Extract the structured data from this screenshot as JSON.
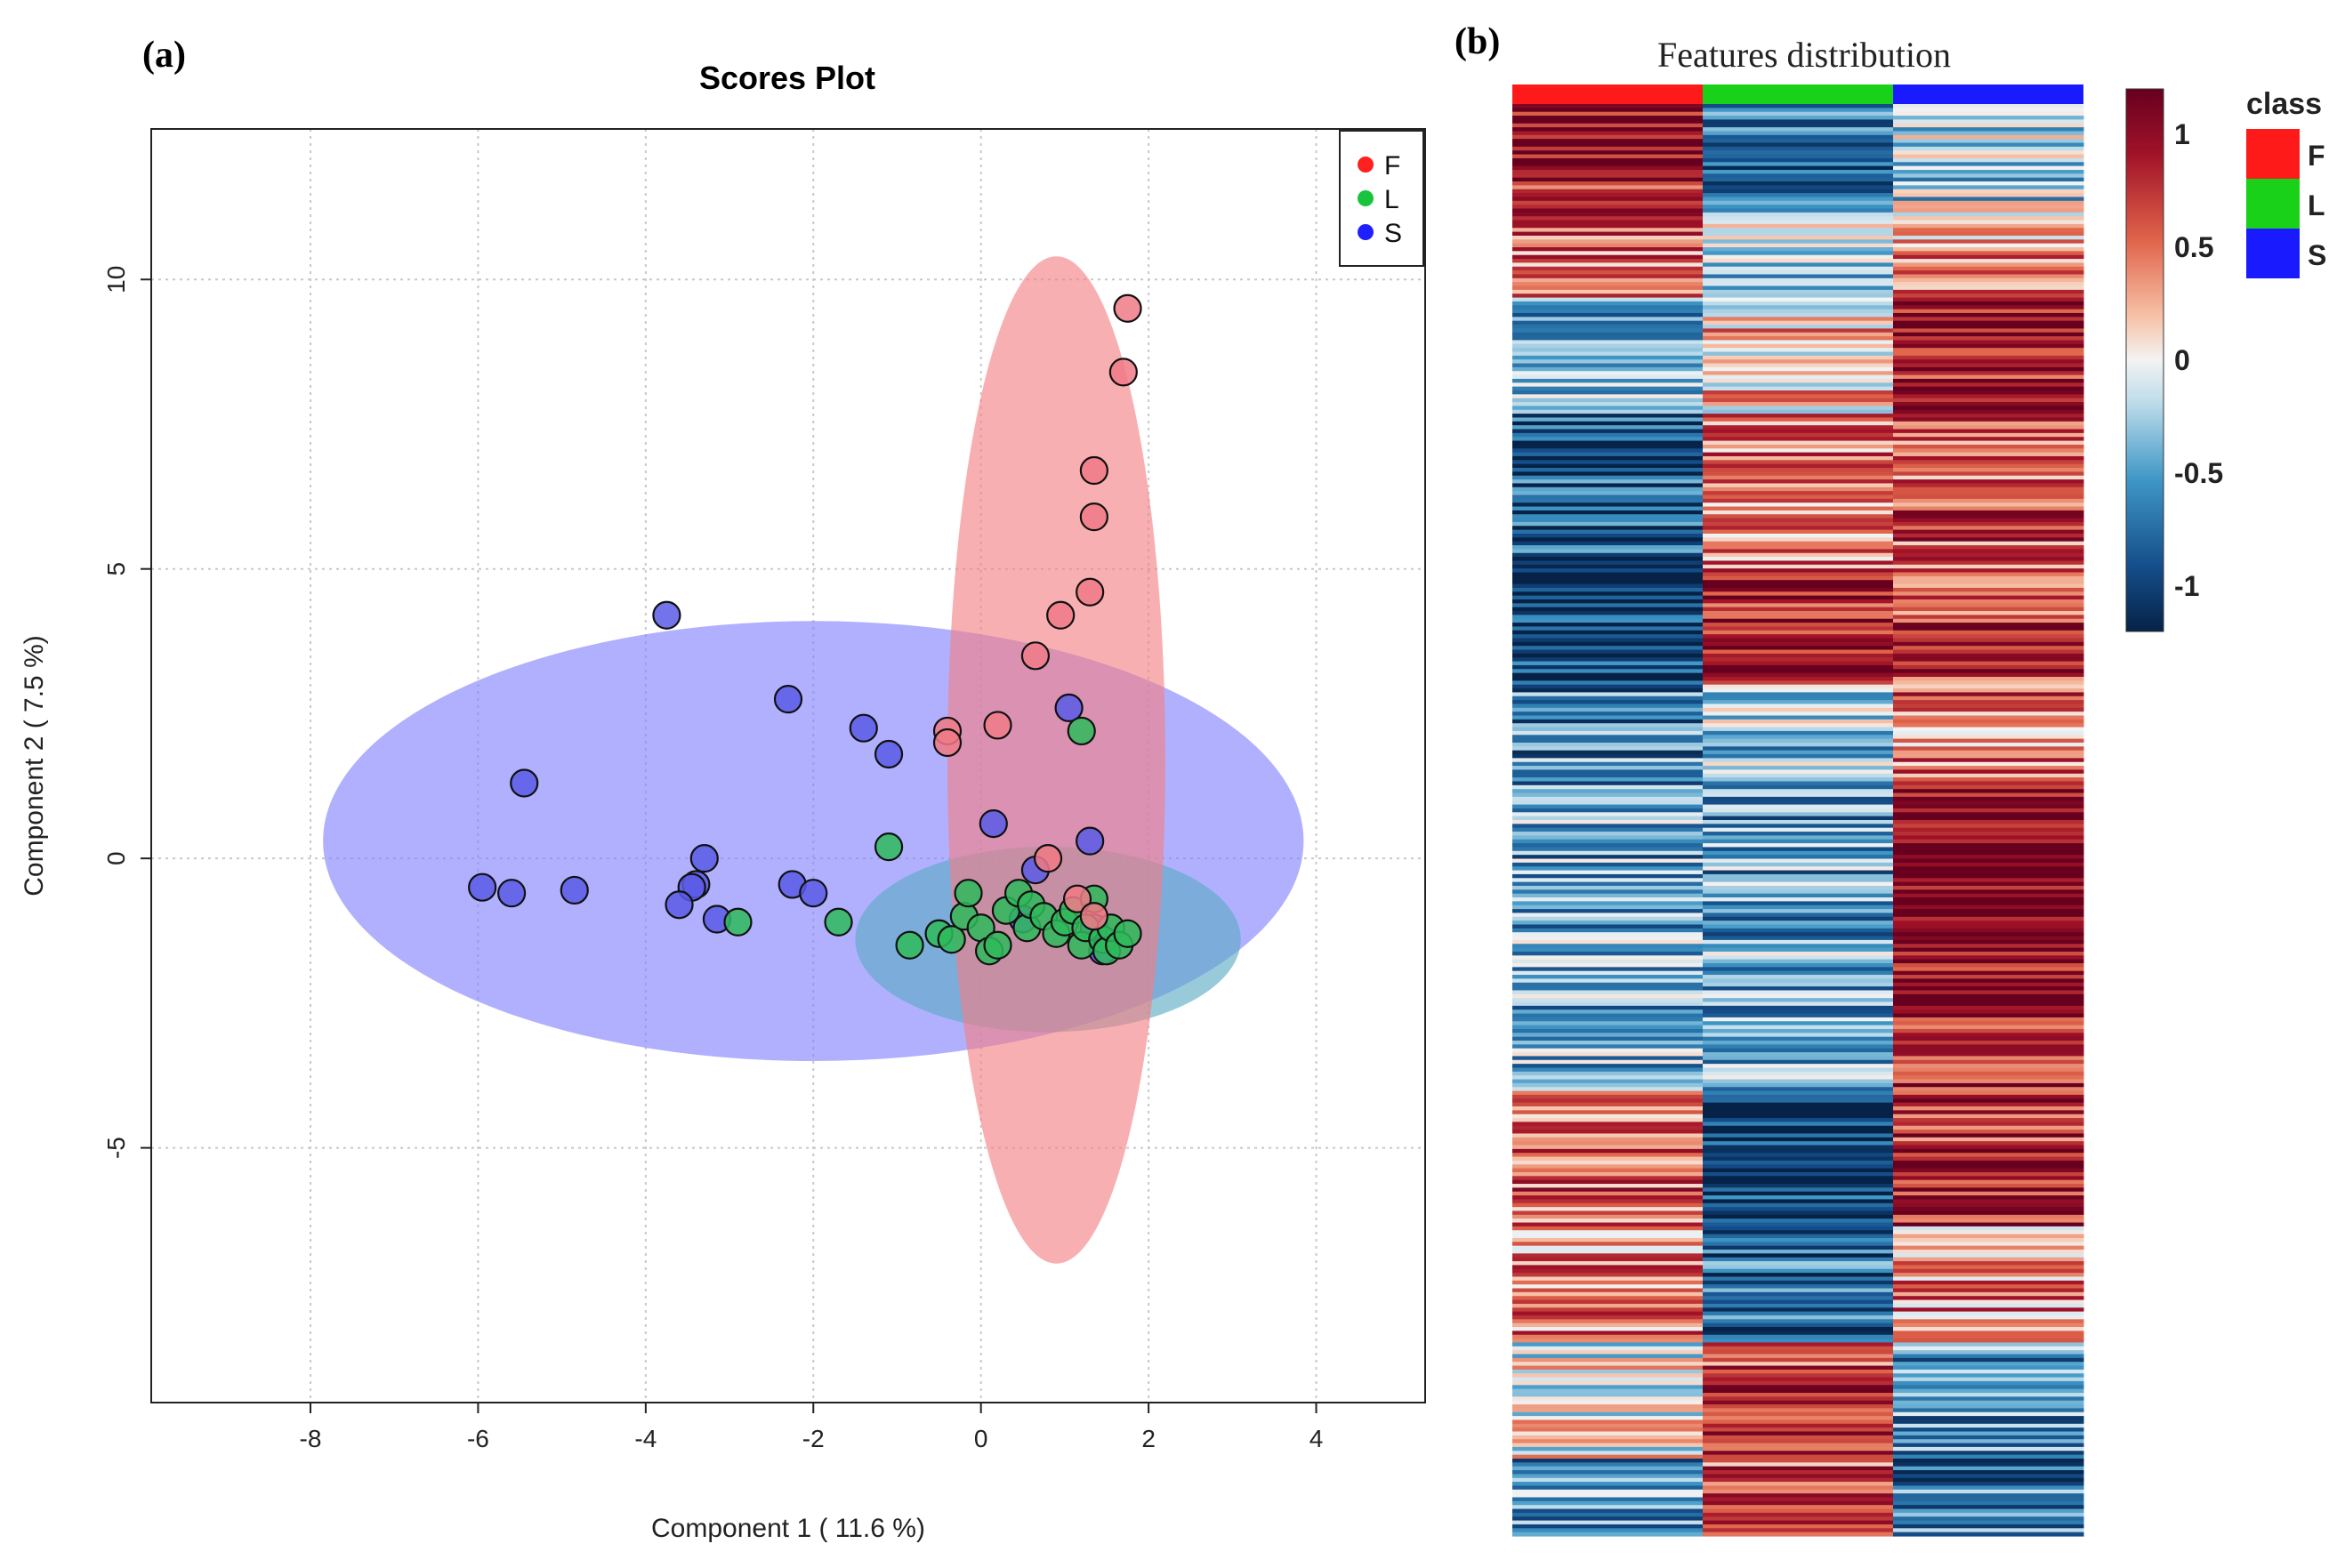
{
  "chart_data": [
    {
      "panel": "(a)",
      "type": "scatter",
      "title": "Scores Plot",
      "xlabel": "Component 1 ( 11.6 %)",
      "ylabel": "Component 2 ( 7.5 %)",
      "xlim": [
        -9.9,
        5.3
      ],
      "ylim": [
        -9.4,
        12.6
      ],
      "xticks": [
        -8,
        -6,
        -4,
        -2,
        0,
        2,
        4
      ],
      "yticks": [
        -5,
        0,
        5,
        10
      ],
      "grid": true,
      "legend_position": "top-right",
      "series": [
        {
          "name": "F",
          "color": "#ff2020",
          "fill": "#f07a86",
          "ellipse": {
            "cx": 0.9,
            "cy": 1.7,
            "rx": 1.3,
            "ry": 8.7,
            "fill": "#f47e83"
          },
          "points": [
            [
              1.75,
              9.5
            ],
            [
              1.7,
              8.4
            ],
            [
              1.35,
              6.7
            ],
            [
              1.35,
              5.9
            ],
            [
              1.3,
              4.6
            ],
            [
              0.95,
              4.2
            ],
            [
              0.65,
              3.5
            ],
            [
              0.2,
              2.3
            ],
            [
              -0.4,
              2.2
            ],
            [
              -0.4,
              2.0
            ],
            [
              0.8,
              0.0
            ],
            [
              1.15,
              -0.7
            ],
            [
              1.35,
              -1.0
            ]
          ]
        },
        {
          "name": "L",
          "color": "#18c43c",
          "fill": "#2eba5a",
          "ellipse": {
            "cx": 0.8,
            "cy": -1.4,
            "rx": 2.3,
            "ry": 1.6,
            "fill": "#5aa9c4"
          },
          "points": [
            [
              1.2,
              2.2
            ],
            [
              -1.1,
              0.2
            ],
            [
              -2.9,
              -1.1
            ],
            [
              -1.7,
              -1.1
            ],
            [
              -0.85,
              -1.5
            ],
            [
              -0.5,
              -1.3
            ],
            [
              -0.35,
              -1.4
            ],
            [
              -0.2,
              -1.0
            ],
            [
              -0.15,
              -0.6
            ],
            [
              0.0,
              -1.2
            ],
            [
              0.1,
              -1.6
            ],
            [
              0.2,
              -1.5
            ],
            [
              0.3,
              -0.9
            ],
            [
              0.45,
              -0.6
            ],
            [
              0.55,
              -1.2
            ],
            [
              0.6,
              -0.8
            ],
            [
              0.75,
              -1.0
            ],
            [
              0.9,
              -1.3
            ],
            [
              1.0,
              -1.1
            ],
            [
              1.1,
              -0.9
            ],
            [
              1.2,
              -1.5
            ],
            [
              1.25,
              -1.2
            ],
            [
              1.35,
              -0.7
            ],
            [
              1.45,
              -1.4
            ],
            [
              1.5,
              -1.6
            ],
            [
              1.55,
              -1.2
            ],
            [
              1.65,
              -1.5
            ],
            [
              1.75,
              -1.3
            ]
          ]
        },
        {
          "name": "S",
          "color": "#2020ff",
          "fill": "#5a5ae6",
          "ellipse": {
            "cx": -2.0,
            "cy": 0.3,
            "rx": 5.85,
            "ry": 3.8,
            "fill": "#8080ff"
          },
          "points": [
            [
              -3.75,
              4.2
            ],
            [
              -2.3,
              2.75
            ],
            [
              -1.4,
              2.25
            ],
            [
              -1.1,
              1.8
            ],
            [
              -5.45,
              1.3
            ],
            [
              1.05,
              2.6
            ],
            [
              0.15,
              0.6
            ],
            [
              1.3,
              0.3
            ],
            [
              0.65,
              -0.2
            ],
            [
              -3.3,
              0.0
            ],
            [
              -3.4,
              -0.45
            ],
            [
              -3.45,
              -0.5
            ],
            [
              -2.25,
              -0.45
            ],
            [
              -2.0,
              -0.6
            ],
            [
              -5.95,
              -0.5
            ],
            [
              -5.6,
              -0.6
            ],
            [
              -4.85,
              -0.55
            ],
            [
              -3.6,
              -0.8
            ],
            [
              -3.15,
              -1.05
            ],
            [
              0.5,
              -1.05
            ],
            [
              1.35,
              -1.2
            ],
            [
              1.45,
              -1.6
            ]
          ]
        }
      ]
    },
    {
      "panel": "(b)",
      "type": "heatmap",
      "title": "Features distribution",
      "columns": [
        "F",
        "L",
        "S"
      ],
      "column_colors": [
        "#ff1a1a",
        "#1ad11a",
        "#1a1aff"
      ],
      "colorbar": {
        "min": -1.2,
        "max": 1.2,
        "ticks": [
          1,
          0.5,
          0,
          -0.5,
          -1
        ],
        "tick_labels": [
          "1",
          "0.5",
          "0",
          "-0.5",
          "-1"
        ]
      },
      "legend_title": "class",
      "legend_labels": [
        "F",
        "L",
        "S"
      ],
      "row_segments": [
        {
          "rows": 25,
          "F": 0.9,
          "L": -0.7,
          "S": -0.2
        },
        {
          "rows": 25,
          "F": 0.6,
          "L": -0.3,
          "S": 0.3
        },
        {
          "rows": 30,
          "F": -0.5,
          "L": 0.2,
          "S": 0.9
        },
        {
          "rows": 40,
          "F": -0.9,
          "L": 0.5,
          "S": 0.6
        },
        {
          "rows": 30,
          "F": -1.0,
          "L": 0.9,
          "S": 0.7
        },
        {
          "rows": 25,
          "F": -0.6,
          "L": -0.3,
          "S": 0.5
        },
        {
          "rows": 40,
          "F": -0.5,
          "L": -0.5,
          "S": 1.0
        },
        {
          "rows": 40,
          "F": -0.4,
          "L": -0.4,
          "S": 0.9
        },
        {
          "rows": 35,
          "F": 0.6,
          "L": -1.0,
          "S": 0.8
        },
        {
          "rows": 30,
          "F": 0.4,
          "L": -0.8,
          "S": 0.4
        },
        {
          "rows": 30,
          "F": 0.0,
          "L": 0.7,
          "S": -0.5
        },
        {
          "rows": 20,
          "F": -0.5,
          "L": 0.6,
          "S": -0.7
        }
      ]
    }
  ]
}
